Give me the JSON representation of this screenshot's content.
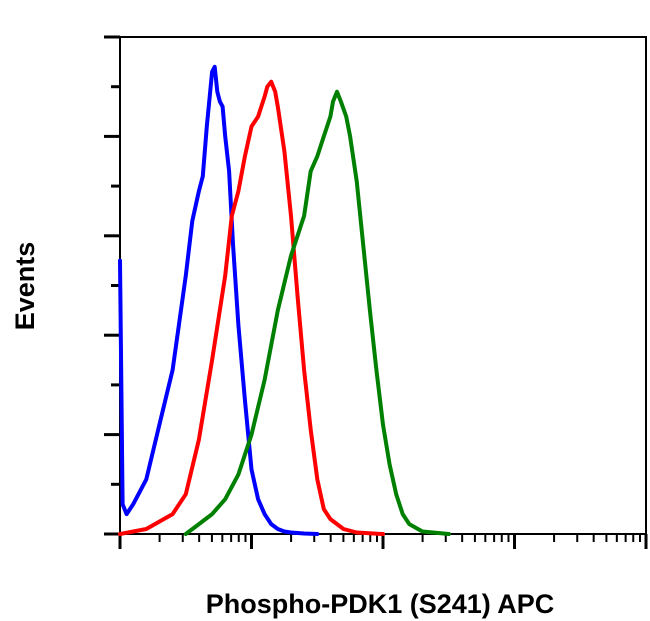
{
  "chart_data": {
    "type": "line",
    "title": "",
    "xlabel": "Phospho-PDK1 (S241) APC",
    "ylabel": "Events",
    "x_scale": "log",
    "xlim": [
      0,
      4
    ],
    "ylim": [
      0,
      100
    ],
    "x_tick_labels_shown": false,
    "y_tick_labels_shown": false,
    "grid": false,
    "legend": "none",
    "series": [
      {
        "color": "#0000ff",
        "x": [
          0.0,
          0.02,
          0.05,
          0.1,
          0.2,
          0.3,
          0.4,
          0.5,
          0.55,
          0.6,
          0.63,
          0.66,
          0.7,
          0.72,
          0.74,
          0.76,
          0.78,
          0.8,
          0.83,
          0.86,
          0.9,
          0.95,
          1.0,
          1.05,
          1.1,
          1.15,
          1.2,
          1.25,
          1.3,
          1.35,
          1.4,
          1.5
        ],
        "y": [
          55,
          6,
          4,
          6,
          11,
          22,
          33,
          52,
          63,
          69,
          72,
          82,
          93,
          94,
          89,
          87,
          86,
          80,
          73,
          58,
          42,
          27,
          13,
          7,
          4,
          2,
          1,
          0.5,
          0.3,
          0.2,
          0.1,
          0
        ]
      },
      {
        "color": "#ff0000",
        "x": [
          0.0,
          0.2,
          0.4,
          0.5,
          0.6,
          0.7,
          0.8,
          0.85,
          0.9,
          0.95,
          1.0,
          1.05,
          1.1,
          1.12,
          1.15,
          1.18,
          1.2,
          1.25,
          1.3,
          1.35,
          1.4,
          1.45,
          1.5,
          1.55,
          1.6,
          1.7,
          1.8,
          2.0
        ],
        "y": [
          0,
          1,
          4,
          8,
          19,
          35,
          52,
          64,
          69,
          76,
          82,
          84,
          88,
          90,
          91,
          89,
          86,
          77,
          64,
          48,
          33,
          21,
          11,
          5,
          3,
          1,
          0.3,
          0
        ]
      },
      {
        "color": "#008000",
        "x": [
          0.5,
          0.6,
          0.7,
          0.8,
          0.9,
          1.0,
          1.1,
          1.2,
          1.3,
          1.4,
          1.45,
          1.5,
          1.55,
          1.6,
          1.62,
          1.65,
          1.68,
          1.72,
          1.75,
          1.8,
          1.85,
          1.9,
          1.95,
          2.0,
          2.05,
          2.1,
          2.15,
          2.2,
          2.3,
          2.5
        ],
        "y": [
          0,
          2,
          4,
          7,
          12,
          20,
          31,
          45,
          56,
          64,
          73,
          76,
          80,
          84,
          87,
          89,
          87,
          84,
          80,
          71,
          58,
          45,
          33,
          22,
          14,
          8,
          4,
          2,
          0.5,
          0
        ]
      }
    ]
  }
}
